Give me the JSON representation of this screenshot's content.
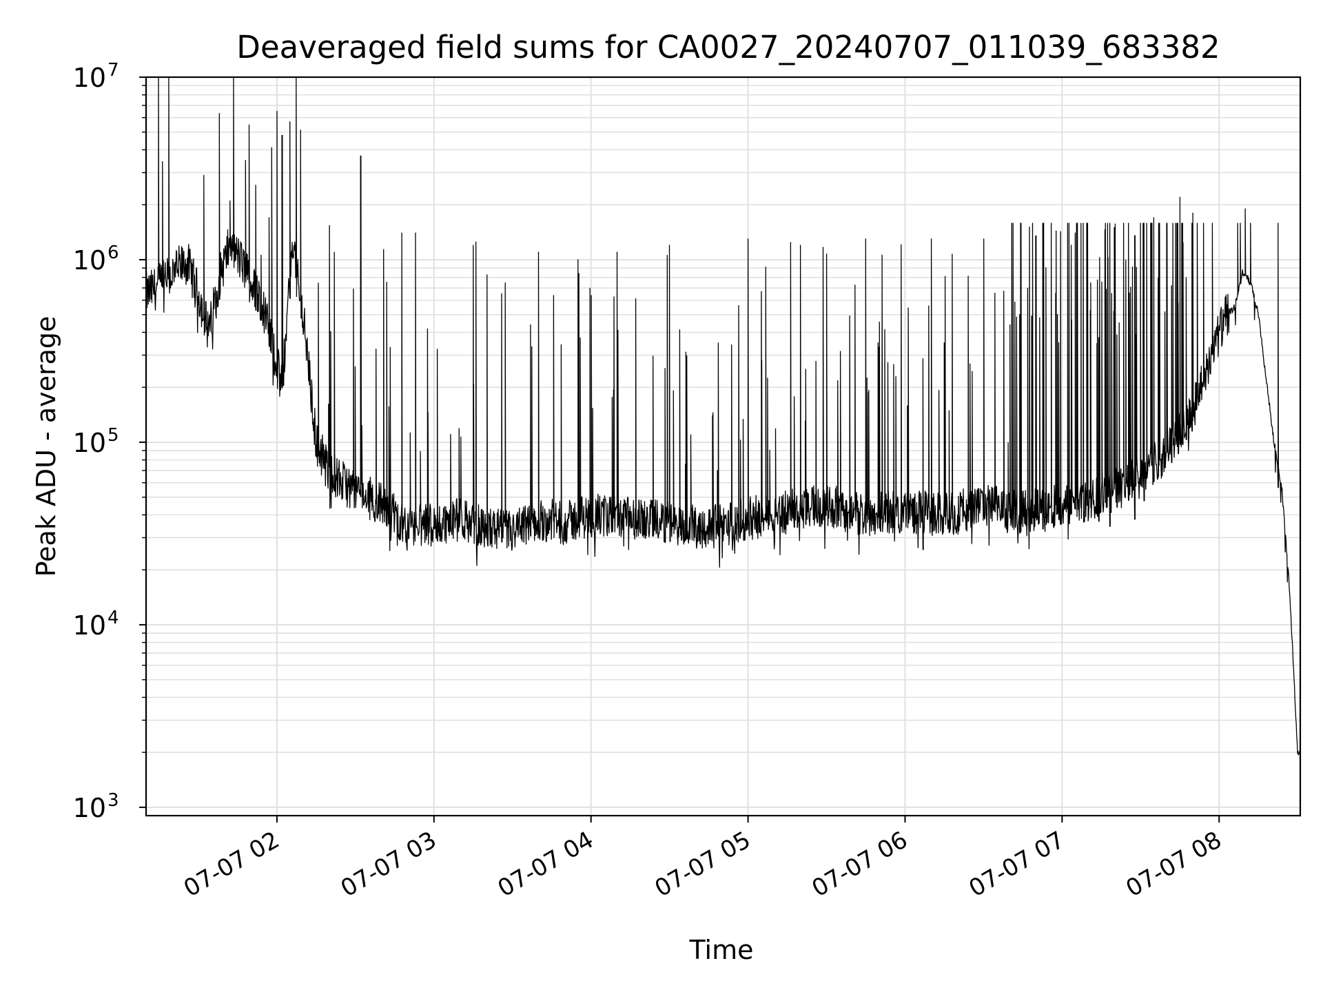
{
  "chart_data": {
    "type": "line",
    "title": "Deaveraged field sums for CA0027_20240707_011039_683382",
    "xlabel": "Time",
    "ylabel": "Peak ADU - average",
    "x_start": "2024-07-07 01:10",
    "x_end": "2024-07-07 08:31",
    "xlim": [
      "2024-07-07 01:10",
      "2024-07-07 08:31"
    ],
    "ylim": [
      900,
      10000000
    ],
    "yscale": "log",
    "grid": true,
    "line_color": "#000000",
    "grid_color": "#e0e0e0",
    "x_ticks": [
      {
        "value": "2024-07-07 02:00",
        "label": "07-07 02"
      },
      {
        "value": "2024-07-07 03:00",
        "label": "07-07 03"
      },
      {
        "value": "2024-07-07 04:00",
        "label": "07-07 04"
      },
      {
        "value": "2024-07-07 05:00",
        "label": "07-07 05"
      },
      {
        "value": "2024-07-07 06:00",
        "label": "07-07 06"
      },
      {
        "value": "2024-07-07 07:00",
        "label": "07-07 07"
      },
      {
        "value": "2024-07-07 08:00",
        "label": "07-07 08"
      }
    ],
    "y_ticks": [
      {
        "value": 1000,
        "base": "10",
        "exp": "3"
      },
      {
        "value": 10000,
        "base": "10",
        "exp": "4"
      },
      {
        "value": 100000,
        "base": "10",
        "exp": "5"
      },
      {
        "value": 1000000,
        "base": "10",
        "exp": "6"
      },
      {
        "value": 10000000,
        "base": "10",
        "exp": "7"
      }
    ],
    "series": [
      {
        "x": [
          "2024-07-07 01:10",
          "2024-07-07 01:14",
          "2024-07-07 01:18",
          "2024-07-07 01:22",
          "2024-07-07 01:26",
          "2024-07-07 01:30",
          "2024-07-07 01:34",
          "2024-07-07 01:38",
          "2024-07-07 01:42",
          "2024-07-07 01:46",
          "2024-07-07 01:50",
          "2024-07-07 01:54",
          "2024-07-07 01:58",
          "2024-07-07 02:02",
          "2024-07-07 02:06",
          "2024-07-07 02:10",
          "2024-07-07 02:15",
          "2024-07-07 02:20",
          "2024-07-07 02:25",
          "2024-07-07 02:30",
          "2024-07-07 02:35",
          "2024-07-07 02:40",
          "2024-07-07 02:45",
          "2024-07-07 02:50",
          "2024-07-07 03:00",
          "2024-07-07 03:10",
          "2024-07-07 03:20",
          "2024-07-07 03:30",
          "2024-07-07 03:40",
          "2024-07-07 03:50",
          "2024-07-07 04:00",
          "2024-07-07 04:15",
          "2024-07-07 04:30",
          "2024-07-07 04:45",
          "2024-07-07 05:00",
          "2024-07-07 05:15",
          "2024-07-07 05:30",
          "2024-07-07 05:45",
          "2024-07-07 06:00",
          "2024-07-07 06:15",
          "2024-07-07 06:30",
          "2024-07-07 06:45",
          "2024-07-07 07:00",
          "2024-07-07 07:10",
          "2024-07-07 07:20",
          "2024-07-07 07:30",
          "2024-07-07 07:40",
          "2024-07-07 07:50",
          "2024-07-07 07:55",
          "2024-07-07 08:00",
          "2024-07-07 08:03",
          "2024-07-07 08:06",
          "2024-07-07 08:09",
          "2024-07-07 08:12",
          "2024-07-07 08:15",
          "2024-07-07 08:18",
          "2024-07-07 08:21",
          "2024-07-07 08:24",
          "2024-07-07 08:27",
          "2024-07-07 08:30"
        ],
        "values": [
          650000,
          700000,
          780000,
          900000,
          950000,
          650000,
          400000,
          800000,
          1200000,
          1000000,
          750000,
          600000,
          350000,
          200000,
          1300000,
          500000,
          100000,
          70000,
          60000,
          55000,
          50000,
          45000,
          40000,
          35000,
          35000,
          38000,
          34000,
          32000,
          38000,
          36000,
          40000,
          38000,
          36000,
          34000,
          38000,
          42000,
          45000,
          40000,
          42000,
          40000,
          45000,
          42000,
          45000,
          48000,
          55000,
          65000,
          90000,
          150000,
          250000,
          400000,
          500000,
          550000,
          850000,
          750000,
          500000,
          220000,
          100000,
          55000,
          15000,
          2000
        ],
        "spike_x": [
          "2024-07-07 01:32",
          "2024-07-07 01:42",
          "2024-07-07 01:48",
          "2024-07-07 01:57",
          "2024-07-07 02:00",
          "2024-07-07 02:02",
          "2024-07-07 02:32",
          "2024-07-07 02:53",
          "2024-07-07 03:15",
          "2024-07-07 03:40",
          "2024-07-07 03:55",
          "2024-07-07 04:10",
          "2024-07-07 04:30",
          "2024-07-07 05:00",
          "2024-07-07 05:20",
          "2024-07-07 05:45",
          "2024-07-07 06:10",
          "2024-07-07 06:30",
          "2024-07-07 06:50",
          "2024-07-07 07:05",
          "2024-07-07 07:20",
          "2024-07-07 07:35",
          "2024-07-07 07:45",
          "2024-07-07 07:50",
          "2024-07-07 08:10"
        ],
        "spike_values": [
          2900000,
          2100000,
          3500000,
          1700000,
          6500000,
          4800000,
          3700000,
          1400000,
          1200000,
          1100000,
          1000000,
          1100000,
          1200000,
          1300000,
          1200000,
          1300000,
          1300000,
          1300000,
          1350000,
          1400000,
          1500000,
          1700000,
          2200000,
          1800000,
          1900000
        ]
      }
    ]
  }
}
